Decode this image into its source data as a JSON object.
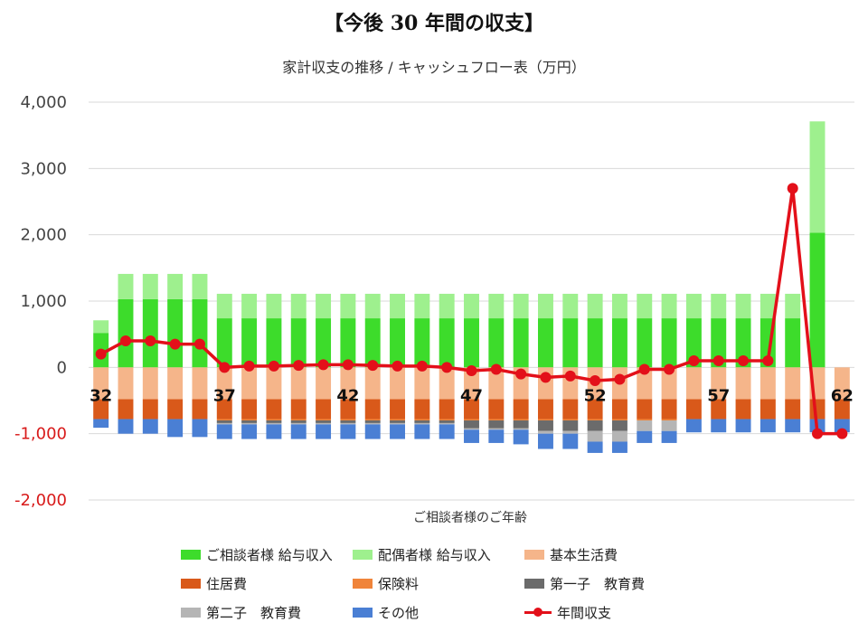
{
  "heading": "【今後 30 年間の収支】",
  "chart_data": {
    "type": "bar",
    "title": "家計収支の推移 / キャッシュフロー表（万円）",
    "xlabel": "ご相談者様のご年齢",
    "ylabel": "",
    "ylim": [
      -2000,
      4000
    ],
    "yticks": [
      "4,000",
      "3,000",
      "2,000",
      "1,000",
      "0",
      "-1,000",
      "-2,000"
    ],
    "ytick_values": [
      4000,
      3000,
      2000,
      1000,
      0,
      -1000,
      -2000
    ],
    "categories": [
      "32",
      "33",
      "34",
      "35",
      "36",
      "37",
      "38",
      "39",
      "40",
      "41",
      "42",
      "43",
      "44",
      "45",
      "46",
      "47",
      "48",
      "49",
      "50",
      "51",
      "52",
      "53",
      "54",
      "55",
      "56",
      "57",
      "58",
      "59",
      "60",
      "61",
      "62"
    ],
    "x_labels_shown": [
      "32",
      "37",
      "42",
      "47",
      "52",
      "57",
      "62"
    ],
    "grid": true,
    "legend_position": "bottom",
    "colors": {
      "main_income": "#3ddc2b",
      "spouse_income": "#9ef08e",
      "living": "#f5b58a",
      "housing": "#d9591a",
      "insurance": "#f0843a",
      "child1": "#6b6b6b",
      "child2": "#b5b5b5",
      "other": "#4a7fd4",
      "balance": "#e3101a",
      "negative_tick": "#d81a1a"
    },
    "series": [
      {
        "name": "ご相談者様 給与収入",
        "key": "main_income",
        "values": [
          520,
          1030,
          1030,
          1030,
          1030,
          740,
          740,
          740,
          740,
          740,
          740,
          740,
          740,
          740,
          740,
          740,
          740,
          740,
          740,
          740,
          740,
          740,
          740,
          740,
          740,
          740,
          740,
          740,
          740,
          2030,
          0
        ]
      },
      {
        "name": "配偶者様 給与収入",
        "key": "spouse_income",
        "values": [
          190,
          380,
          380,
          380,
          380,
          370,
          370,
          370,
          370,
          370,
          370,
          370,
          370,
          370,
          370,
          370,
          370,
          370,
          370,
          370,
          370,
          370,
          370,
          370,
          370,
          370,
          370,
          370,
          370,
          1680,
          0
        ]
      },
      {
        "name": "基本生活費",
        "key": "living",
        "values": [
          -480,
          -480,
          -480,
          -480,
          -480,
          -480,
          -480,
          -480,
          -480,
          -480,
          -480,
          -480,
          -480,
          -480,
          -480,
          -480,
          -480,
          -480,
          -480,
          -480,
          -480,
          -480,
          -480,
          -480,
          -480,
          -480,
          -480,
          -480,
          -480,
          -480,
          -480
        ]
      },
      {
        "name": "住居費",
        "key": "housing",
        "values": [
          -300,
          -300,
          -300,
          -300,
          -300,
          -300,
          -300,
          -300,
          -300,
          -300,
          -300,
          -300,
          -300,
          -300,
          -300,
          -300,
          -300,
          -300,
          -300,
          -300,
          -300,
          -300,
          -300,
          -300,
          -300,
          -300,
          -300,
          -300,
          -300,
          -300,
          -300
        ]
      },
      {
        "name": "保険料",
        "key": "insurance",
        "values": [
          0,
          0,
          0,
          0,
          0,
          -20,
          -20,
          -20,
          -20,
          -20,
          -20,
          -20,
          -20,
          -20,
          -20,
          -20,
          -20,
          -20,
          -20,
          -20,
          -20,
          -20,
          -20,
          -20,
          0,
          0,
          0,
          0,
          0,
          0,
          0
        ]
      },
      {
        "name": "第一子　教育費",
        "key": "child1",
        "values": [
          0,
          0,
          0,
          0,
          0,
          -40,
          -40,
          -40,
          -40,
          -40,
          -40,
          -40,
          -40,
          -40,
          -40,
          -120,
          -120,
          -120,
          -160,
          -160,
          -160,
          -160,
          0,
          0,
          0,
          0,
          0,
          0,
          0,
          0,
          0
        ]
      },
      {
        "name": "第二子　教育費",
        "key": "child2",
        "values": [
          0,
          0,
          0,
          0,
          0,
          -20,
          -20,
          -20,
          -20,
          -20,
          -20,
          -20,
          -20,
          -20,
          -20,
          -20,
          -20,
          -20,
          -40,
          -40,
          -160,
          -160,
          -160,
          -160,
          0,
          0,
          0,
          0,
          0,
          0,
          0
        ]
      },
      {
        "name": "その他",
        "key": "other",
        "values": [
          -130,
          -220,
          -220,
          -270,
          -270,
          -220,
          -220,
          -220,
          -220,
          -220,
          -220,
          -220,
          -220,
          -220,
          -220,
          -200,
          -200,
          -220,
          -230,
          -230,
          -170,
          -170,
          -180,
          -180,
          -200,
          -200,
          -200,
          -200,
          -200,
          -200,
          -200
        ]
      },
      {
        "name": "年間収支",
        "key": "balance",
        "type": "line",
        "values": [
          200,
          400,
          400,
          350,
          350,
          0,
          20,
          20,
          30,
          40,
          40,
          30,
          20,
          20,
          0,
          -50,
          -30,
          -100,
          -150,
          -130,
          -200,
          -180,
          -30,
          -30,
          100,
          100,
          100,
          100,
          2700,
          -1000,
          -1000
        ]
      }
    ]
  }
}
